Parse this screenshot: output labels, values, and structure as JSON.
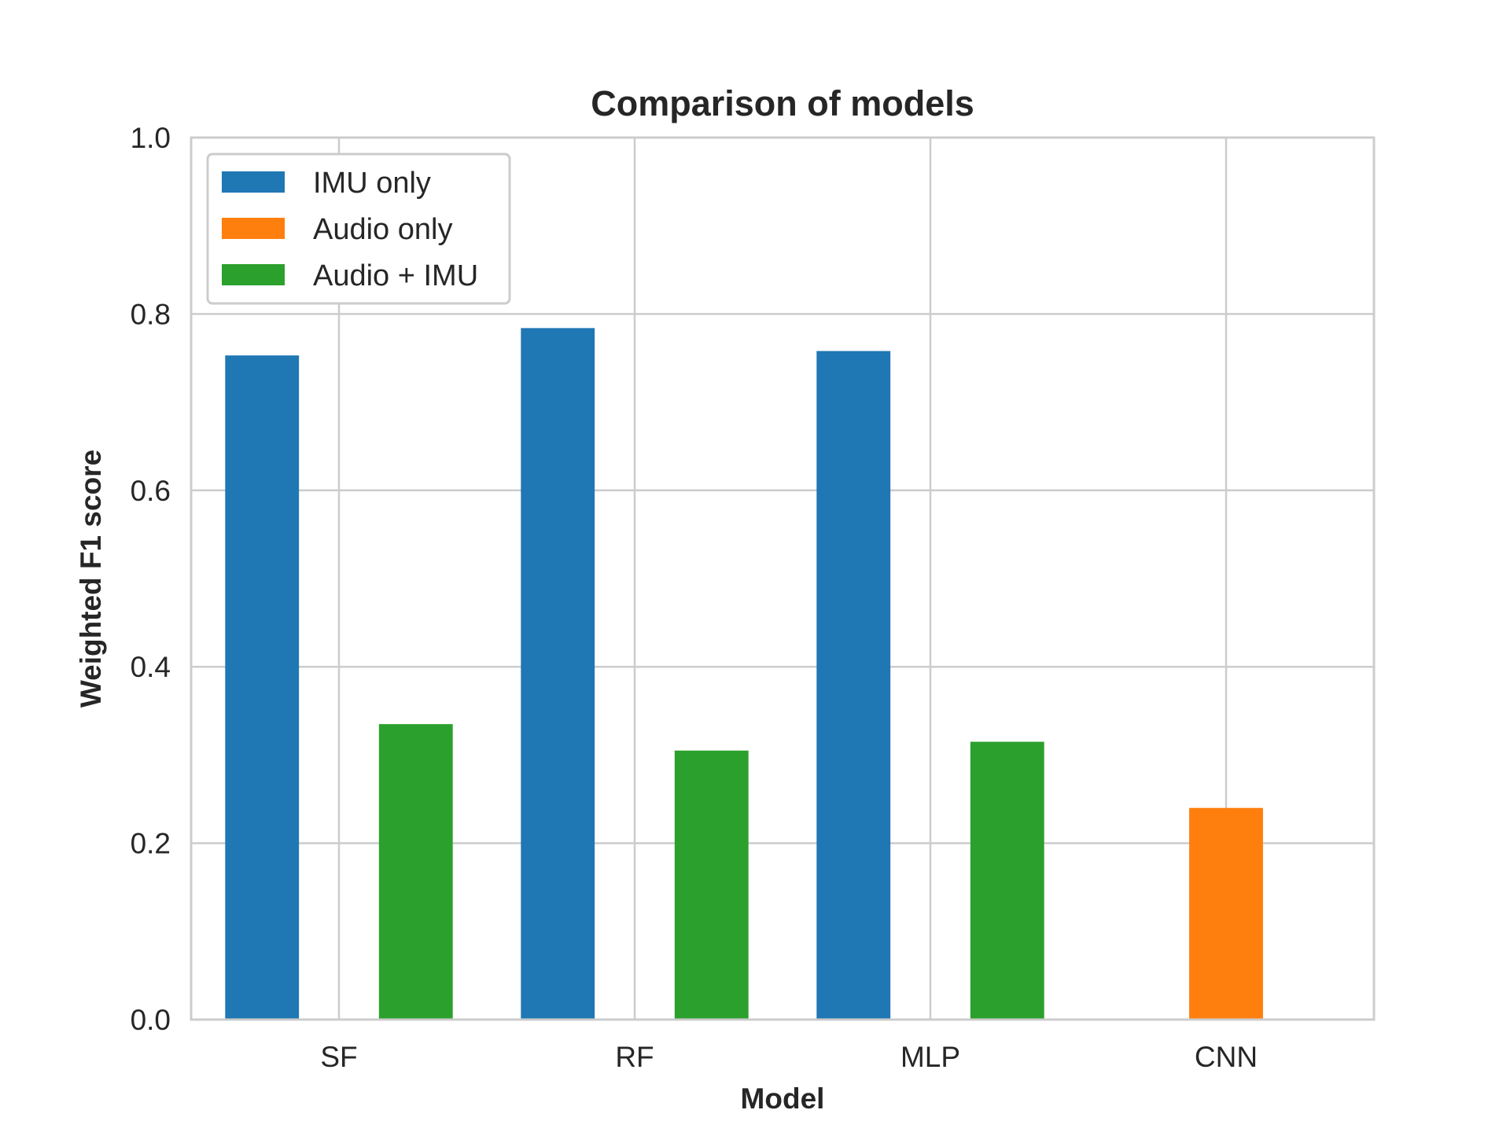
{
  "chart_data": {
    "type": "bar",
    "title": "Comparison of models",
    "xlabel": "Model",
    "ylabel": "Weighted F1 score",
    "categories": [
      "SF",
      "RF",
      "MLP",
      "CNN"
    ],
    "ylim": [
      0,
      1.0
    ],
    "yticks": [
      "0.0",
      "0.2",
      "0.4",
      "0.6",
      "0.8",
      "1.0"
    ],
    "grid": true,
    "legend_position": "top-left",
    "series": [
      {
        "name": "IMU only",
        "color": "#1f77b4",
        "values": [
          0.753,
          0.784,
          0.758,
          null
        ]
      },
      {
        "name": "Audio only",
        "color": "#ff7f0e",
        "values": [
          null,
          null,
          null,
          0.24
        ]
      },
      {
        "name": "Audio + IMU",
        "color": "#2ca02c",
        "values": [
          0.335,
          0.305,
          0.315,
          null
        ]
      }
    ]
  }
}
